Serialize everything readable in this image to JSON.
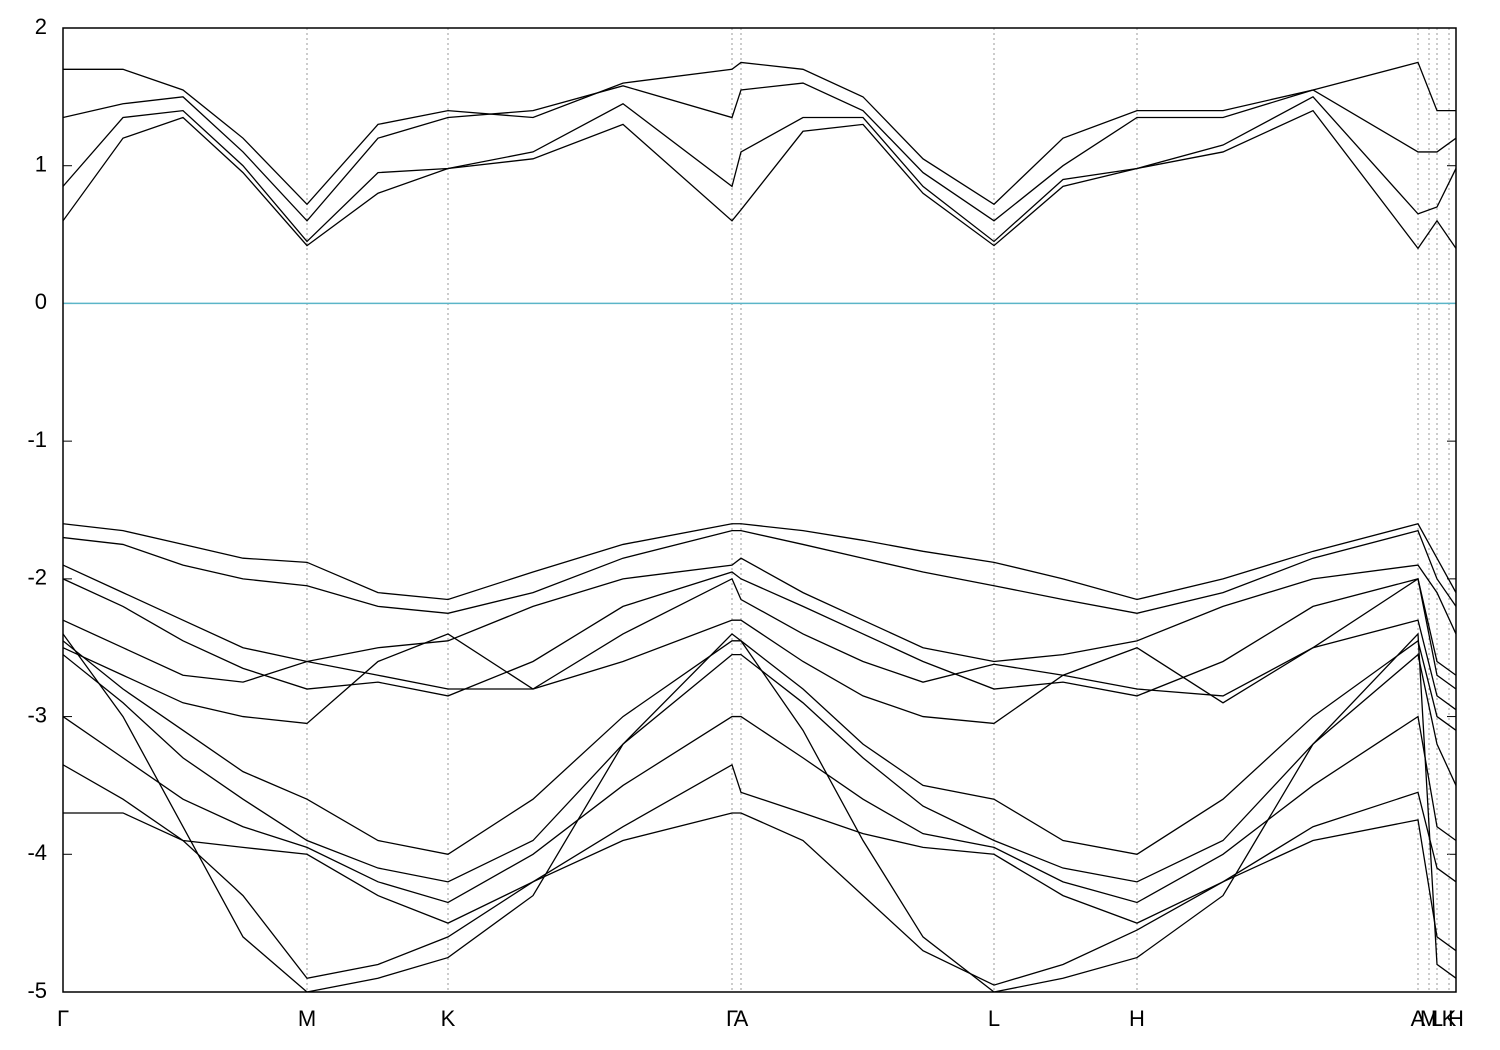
{
  "chart_data": {
    "type": "line",
    "x": [
      0,
      60,
      120,
      180,
      244,
      315,
      385,
      470,
      560,
      669,
      678,
      740,
      800,
      860,
      931,
      1000,
      1074,
      1160,
      1250,
      1355,
      1374,
      1393
    ],
    "xlim": [
      0,
      1393
    ],
    "xticks": [
      {
        "value": 0,
        "label": "Γ"
      },
      {
        "value": 244,
        "label": "M"
      },
      {
        "value": 385,
        "label": "K"
      },
      {
        "value": 669,
        "label": "Γ"
      },
      {
        "value": 678,
        "label": "A"
      },
      {
        "value": 931,
        "label": "L"
      },
      {
        "value": 1074,
        "label": "H"
      },
      {
        "value": 1355,
        "label": "A"
      },
      {
        "value": 1366,
        "label": "M"
      },
      {
        "value": 1374,
        "label": "L"
      },
      {
        "value": 1386,
        "label": "K"
      },
      {
        "value": 1393,
        "label": "H"
      }
    ],
    "xgrid": true,
    "ylim": [
      -5,
      2
    ],
    "yticks": [
      -5,
      -4,
      -3,
      -2,
      -1,
      0,
      1,
      2
    ],
    "line_color": "#000000",
    "reference_line": {
      "value": 0,
      "color": "#5bb5c8"
    },
    "series": [
      {
        "values": [
          0.6,
          1.2,
          1.35,
          0.95,
          0.42,
          0.8,
          0.98,
          1.05,
          1.3,
          0.6,
          0.68,
          1.25,
          1.3,
          0.8,
          0.42,
          0.85,
          0.98,
          1.1,
          1.4,
          0.4,
          0.6,
          0.4
        ]
      },
      {
        "values": [
          0.85,
          1.35,
          1.4,
          1.0,
          0.45,
          0.95,
          0.98,
          1.1,
          1.45,
          0.85,
          1.1,
          1.35,
          1.35,
          0.85,
          0.45,
          0.9,
          0.98,
          1.15,
          1.5,
          0.65,
          0.7,
          0.98
        ]
      },
      {
        "values": [
          1.35,
          1.45,
          1.5,
          1.1,
          0.6,
          1.2,
          1.35,
          1.4,
          1.58,
          1.35,
          1.55,
          1.6,
          1.4,
          0.95,
          0.6,
          1.0,
          1.35,
          1.35,
          1.55,
          1.1,
          1.1,
          1.2
        ]
      },
      {
        "values": [
          1.7,
          1.7,
          1.55,
          1.2,
          0.72,
          1.3,
          1.4,
          1.35,
          1.6,
          1.7,
          1.75,
          1.7,
          1.5,
          1.05,
          0.72,
          1.2,
          1.4,
          1.4,
          1.55,
          1.75,
          1.4,
          1.4
        ]
      },
      {
        "values": [
          -1.6,
          -1.65,
          -1.75,
          -1.85,
          -1.88,
          -2.1,
          -2.15,
          -1.95,
          -1.75,
          -1.6,
          -1.6,
          -1.65,
          -1.72,
          -1.8,
          -1.88,
          -2.0,
          -2.15,
          -2.0,
          -1.8,
          -1.6,
          -1.85,
          -2.1
        ]
      },
      {
        "values": [
          -1.7,
          -1.75,
          -1.9,
          -2.0,
          -2.05,
          -2.2,
          -2.25,
          -2.1,
          -1.85,
          -1.65,
          -1.65,
          -1.75,
          -1.85,
          -1.95,
          -2.05,
          -2.15,
          -2.25,
          -2.1,
          -1.85,
          -1.65,
          -2.0,
          -2.2
        ]
      },
      {
        "values": [
          -1.9,
          -2.1,
          -2.3,
          -2.5,
          -2.6,
          -2.5,
          -2.45,
          -2.2,
          -2.0,
          -1.9,
          -1.85,
          -2.1,
          -2.3,
          -2.5,
          -2.6,
          -2.55,
          -2.45,
          -2.2,
          -2.0,
          -1.9,
          -2.1,
          -2.4
        ]
      },
      {
        "values": [
          -2.0,
          -2.2,
          -2.45,
          -2.65,
          -2.8,
          -2.75,
          -2.85,
          -2.6,
          -2.2,
          -1.95,
          -2.0,
          -2.2,
          -2.4,
          -2.6,
          -2.8,
          -2.75,
          -2.85,
          -2.6,
          -2.2,
          -2.0,
          -2.6,
          -2.7
        ]
      },
      {
        "values": [
          -2.3,
          -2.5,
          -2.7,
          -2.75,
          -2.6,
          -2.7,
          -2.8,
          -2.8,
          -2.4,
          -2.0,
          -2.15,
          -2.4,
          -2.6,
          -2.75,
          -2.62,
          -2.7,
          -2.8,
          -2.85,
          -2.5,
          -2.0,
          -2.7,
          -2.8
        ]
      },
      {
        "values": [
          -2.5,
          -2.7,
          -2.9,
          -3.0,
          -3.05,
          -2.6,
          -2.4,
          -2.8,
          -2.6,
          -2.3,
          -2.3,
          -2.6,
          -2.85,
          -3.0,
          -3.05,
          -2.7,
          -2.5,
          -2.9,
          -2.5,
          -2.3,
          -2.85,
          -2.95
        ]
      },
      {
        "values": [
          -2.45,
          -2.8,
          -3.1,
          -3.4,
          -3.6,
          -3.9,
          -4.0,
          -3.6,
          -3.0,
          -2.45,
          -2.45,
          -2.8,
          -3.2,
          -3.5,
          -3.6,
          -3.9,
          -4.0,
          -3.6,
          -3.0,
          -2.45,
          -3.0,
          -3.1
        ]
      },
      {
        "values": [
          -2.55,
          -2.9,
          -3.3,
          -3.6,
          -3.9,
          -4.1,
          -4.2,
          -3.9,
          -3.2,
          -2.55,
          -2.55,
          -2.9,
          -3.3,
          -3.65,
          -3.9,
          -4.1,
          -4.2,
          -3.9,
          -3.2,
          -2.55,
          -3.2,
          -3.5
        ]
      },
      {
        "values": [
          -3.0,
          -3.3,
          -3.6,
          -3.8,
          -3.95,
          -4.2,
          -4.35,
          -4.0,
          -3.5,
          -3.0,
          -3.0,
          -3.3,
          -3.6,
          -3.85,
          -3.95,
          -4.2,
          -4.35,
          -4.0,
          -3.5,
          -3.0,
          -3.8,
          -3.9
        ]
      },
      {
        "values": [
          -3.35,
          -3.6,
          -3.9,
          -3.95,
          -4.0,
          -4.3,
          -4.5,
          -4.2,
          -3.8,
          -3.35,
          -3.55,
          -3.7,
          -3.85,
          -3.95,
          -4.0,
          -4.3,
          -4.5,
          -4.2,
          -3.8,
          -3.55,
          -4.1,
          -4.2
        ]
      },
      {
        "values": [
          -3.7,
          -3.7,
          -3.9,
          -4.3,
          -4.9,
          -4.8,
          -4.6,
          -4.2,
          -3.9,
          -3.7,
          -3.7,
          -3.9,
          -4.3,
          -4.7,
          -4.95,
          -4.8,
          -4.55,
          -4.2,
          -3.9,
          -3.75,
          -4.6,
          -4.7
        ]
      },
      {
        "values": [
          -2.4,
          -3.0,
          -3.8,
          -4.6,
          -5.0,
          -4.9,
          -4.75,
          -4.3,
          -3.2,
          -2.4,
          -2.45,
          -3.1,
          -3.9,
          -4.6,
          -5.0,
          -4.9,
          -4.75,
          -4.3,
          -3.2,
          -2.4,
          -4.8,
          -4.9
        ]
      }
    ]
  }
}
